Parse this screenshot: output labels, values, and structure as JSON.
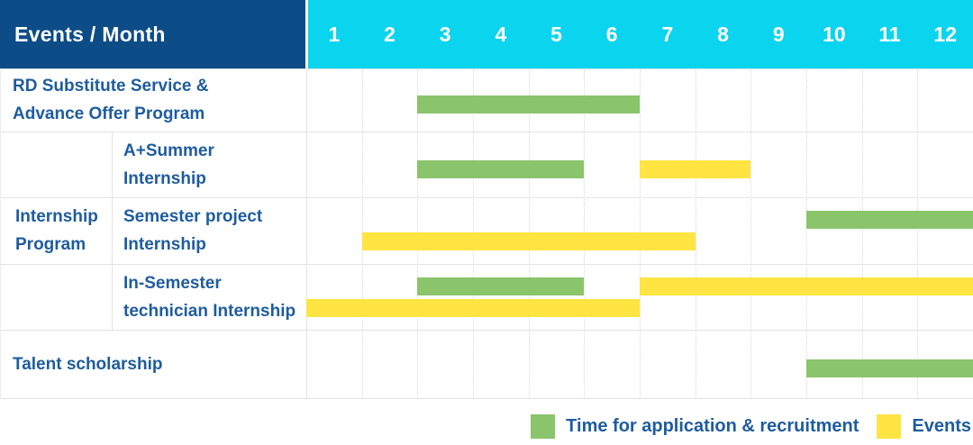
{
  "header": {
    "title": "Events / Month"
  },
  "months": [
    "1",
    "2",
    "3",
    "4",
    "5",
    "6",
    "7",
    "8",
    "9",
    "10",
    "11",
    "12"
  ],
  "colors": {
    "navy": "#0d4d87",
    "cyan": "#0bd4ee",
    "label_blue": "#1e5c9e",
    "green": "#8ac46b",
    "yellow": "#ffe442"
  },
  "legend": [
    {
      "series": "application",
      "color": "#8ac46b",
      "label": "Time for application & recruitment"
    },
    {
      "series": "events",
      "color": "#ffe442",
      "label": "Events"
    }
  ],
  "chart_data": {
    "type": "gantt",
    "x_axis": {
      "label": "Month",
      "ticks": [
        1,
        2,
        3,
        4,
        5,
        6,
        7,
        8,
        9,
        10,
        11,
        12
      ]
    },
    "series_legend": {
      "application": "Time for application & recruitment",
      "events": "Events"
    },
    "groups": [
      {
        "name": "Internship Program",
        "label_lines": [
          "Internship",
          "Program"
        ],
        "row_indexes": [
          1,
          2,
          3
        ]
      }
    ],
    "rows": [
      {
        "label": "RD Substitute Service & Advance Offer Program",
        "label_lines": [
          "RD Substitute Service &",
          "Advance Offer Program"
        ],
        "group": null,
        "bars": [
          {
            "series": "application",
            "start_month": 3,
            "end_month": 6,
            "lane": "single"
          }
        ]
      },
      {
        "label": "A+Summer Internship",
        "label_lines": [
          "A+Summer",
          "Internship"
        ],
        "group": "Internship Program",
        "bars": [
          {
            "series": "application",
            "start_month": 3,
            "end_month": 5,
            "lane": "single"
          },
          {
            "series": "events",
            "start_month": 7,
            "end_month": 8,
            "lane": "single"
          }
        ]
      },
      {
        "label": "Semester project Internship",
        "label_lines": [
          "Semester project",
          "Internship"
        ],
        "group": "Internship Program",
        "bars": [
          {
            "series": "application",
            "start_month": 10,
            "end_month": 12,
            "lane": "top"
          },
          {
            "series": "events",
            "start_month": 2,
            "end_month": 7,
            "lane": "bottom"
          }
        ]
      },
      {
        "label": "In-Semester technician Internship",
        "label_lines": [
          "In-Semester",
          "technician Internship"
        ],
        "group": "Internship Program",
        "bars": [
          {
            "series": "application",
            "start_month": 3,
            "end_month": 5,
            "lane": "top"
          },
          {
            "series": "events",
            "start_month": 7,
            "end_month": 12,
            "lane": "top"
          },
          {
            "series": "events",
            "start_month": 1,
            "end_month": 6,
            "lane": "bottom"
          }
        ]
      },
      {
        "label": "Talent scholarship",
        "label_lines": [
          "Talent scholarship"
        ],
        "group": null,
        "bars": [
          {
            "series": "application",
            "start_month": 10,
            "end_month": 12,
            "lane": "single"
          }
        ]
      }
    ]
  }
}
